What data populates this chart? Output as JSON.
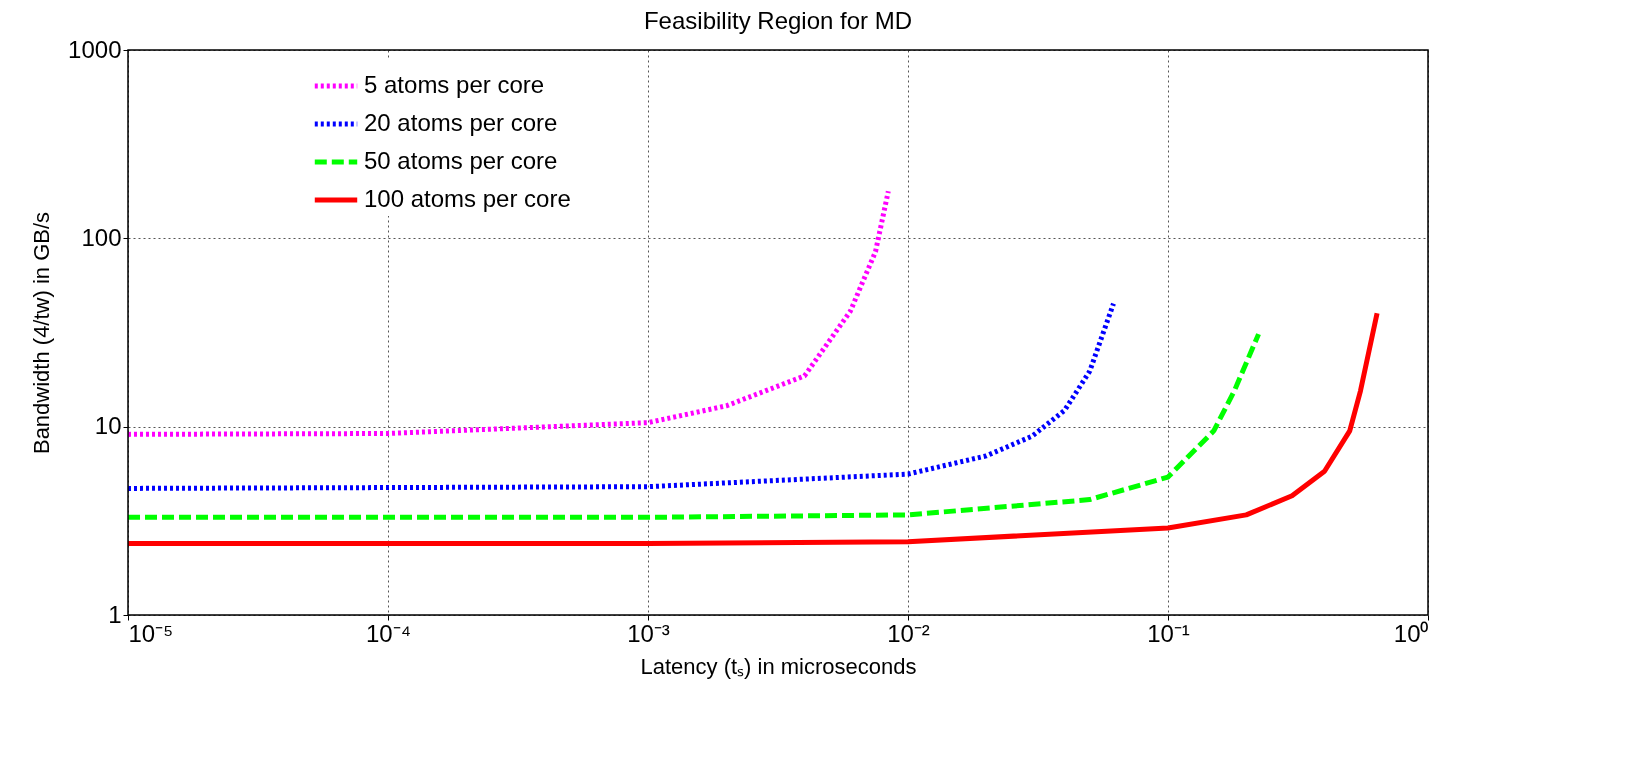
{
  "chart_data": {
    "type": "line",
    "title": "Feasibility Region for MD",
    "xlabel": "Latency (tₛ) in microseconds",
    "ylabel": "Bandwidth (4/tw) in GB/s",
    "log": "xy",
    "grid": true,
    "legend": "top left",
    "xlim": [
      1e-05,
      1
    ],
    "ylim": [
      1,
      1000
    ],
    "xticks": [
      {
        "value": 1e-05,
        "label": "10⁻⁵"
      },
      {
        "value": 0.0001,
        "label": "10⁻⁴"
      },
      {
        "value": 0.001,
        "label": "10⁻³"
      },
      {
        "value": 0.01,
        "label": "10⁻²"
      },
      {
        "value": 0.1,
        "label": "10⁻¹"
      },
      {
        "value": 1,
        "label": "10⁰"
      }
    ],
    "yticks": [
      1,
      10,
      100,
      1000
    ],
    "series": [
      {
        "name": "5 atoms per core",
        "color": "#ff00ff",
        "line_style": "dotted",
        "x": [
          1e-05,
          0.0001,
          0.001,
          0.002,
          0.004,
          0.006,
          0.0075,
          0.0084
        ],
        "values": [
          9.1,
          9.2,
          10.5,
          12.9,
          18.6,
          41,
          85,
          178
        ]
      },
      {
        "name": "20 atoms per core",
        "color": "#0000ff",
        "line_style": "dotted",
        "x": [
          1e-05,
          0.001,
          0.01,
          0.02,
          0.03,
          0.04,
          0.05,
          0.0617
        ],
        "values": [
          4.7,
          4.8,
          5.6,
          7.0,
          8.9,
          12.2,
          19.7,
          45
        ]
      },
      {
        "name": "50 atoms per core",
        "color": "#00ff00",
        "line_style": "dashed",
        "x": [
          1e-05,
          0.001,
          0.01,
          0.05,
          0.1,
          0.15,
          0.18,
          0.223
        ],
        "values": [
          3.3,
          3.3,
          3.4,
          4.1,
          5.4,
          9.5,
          15.5,
          31
        ]
      },
      {
        "name": "100 atoms per core",
        "color": "#ff0000",
        "line_style": "solid",
        "x": [
          1e-05,
          0.001,
          0.01,
          0.1,
          0.2,
          0.3,
          0.4,
          0.5,
          0.55,
          0.637
        ],
        "values": [
          2.4,
          2.4,
          2.45,
          2.9,
          3.4,
          4.3,
          5.8,
          9.5,
          15.5,
          40
        ]
      }
    ]
  }
}
